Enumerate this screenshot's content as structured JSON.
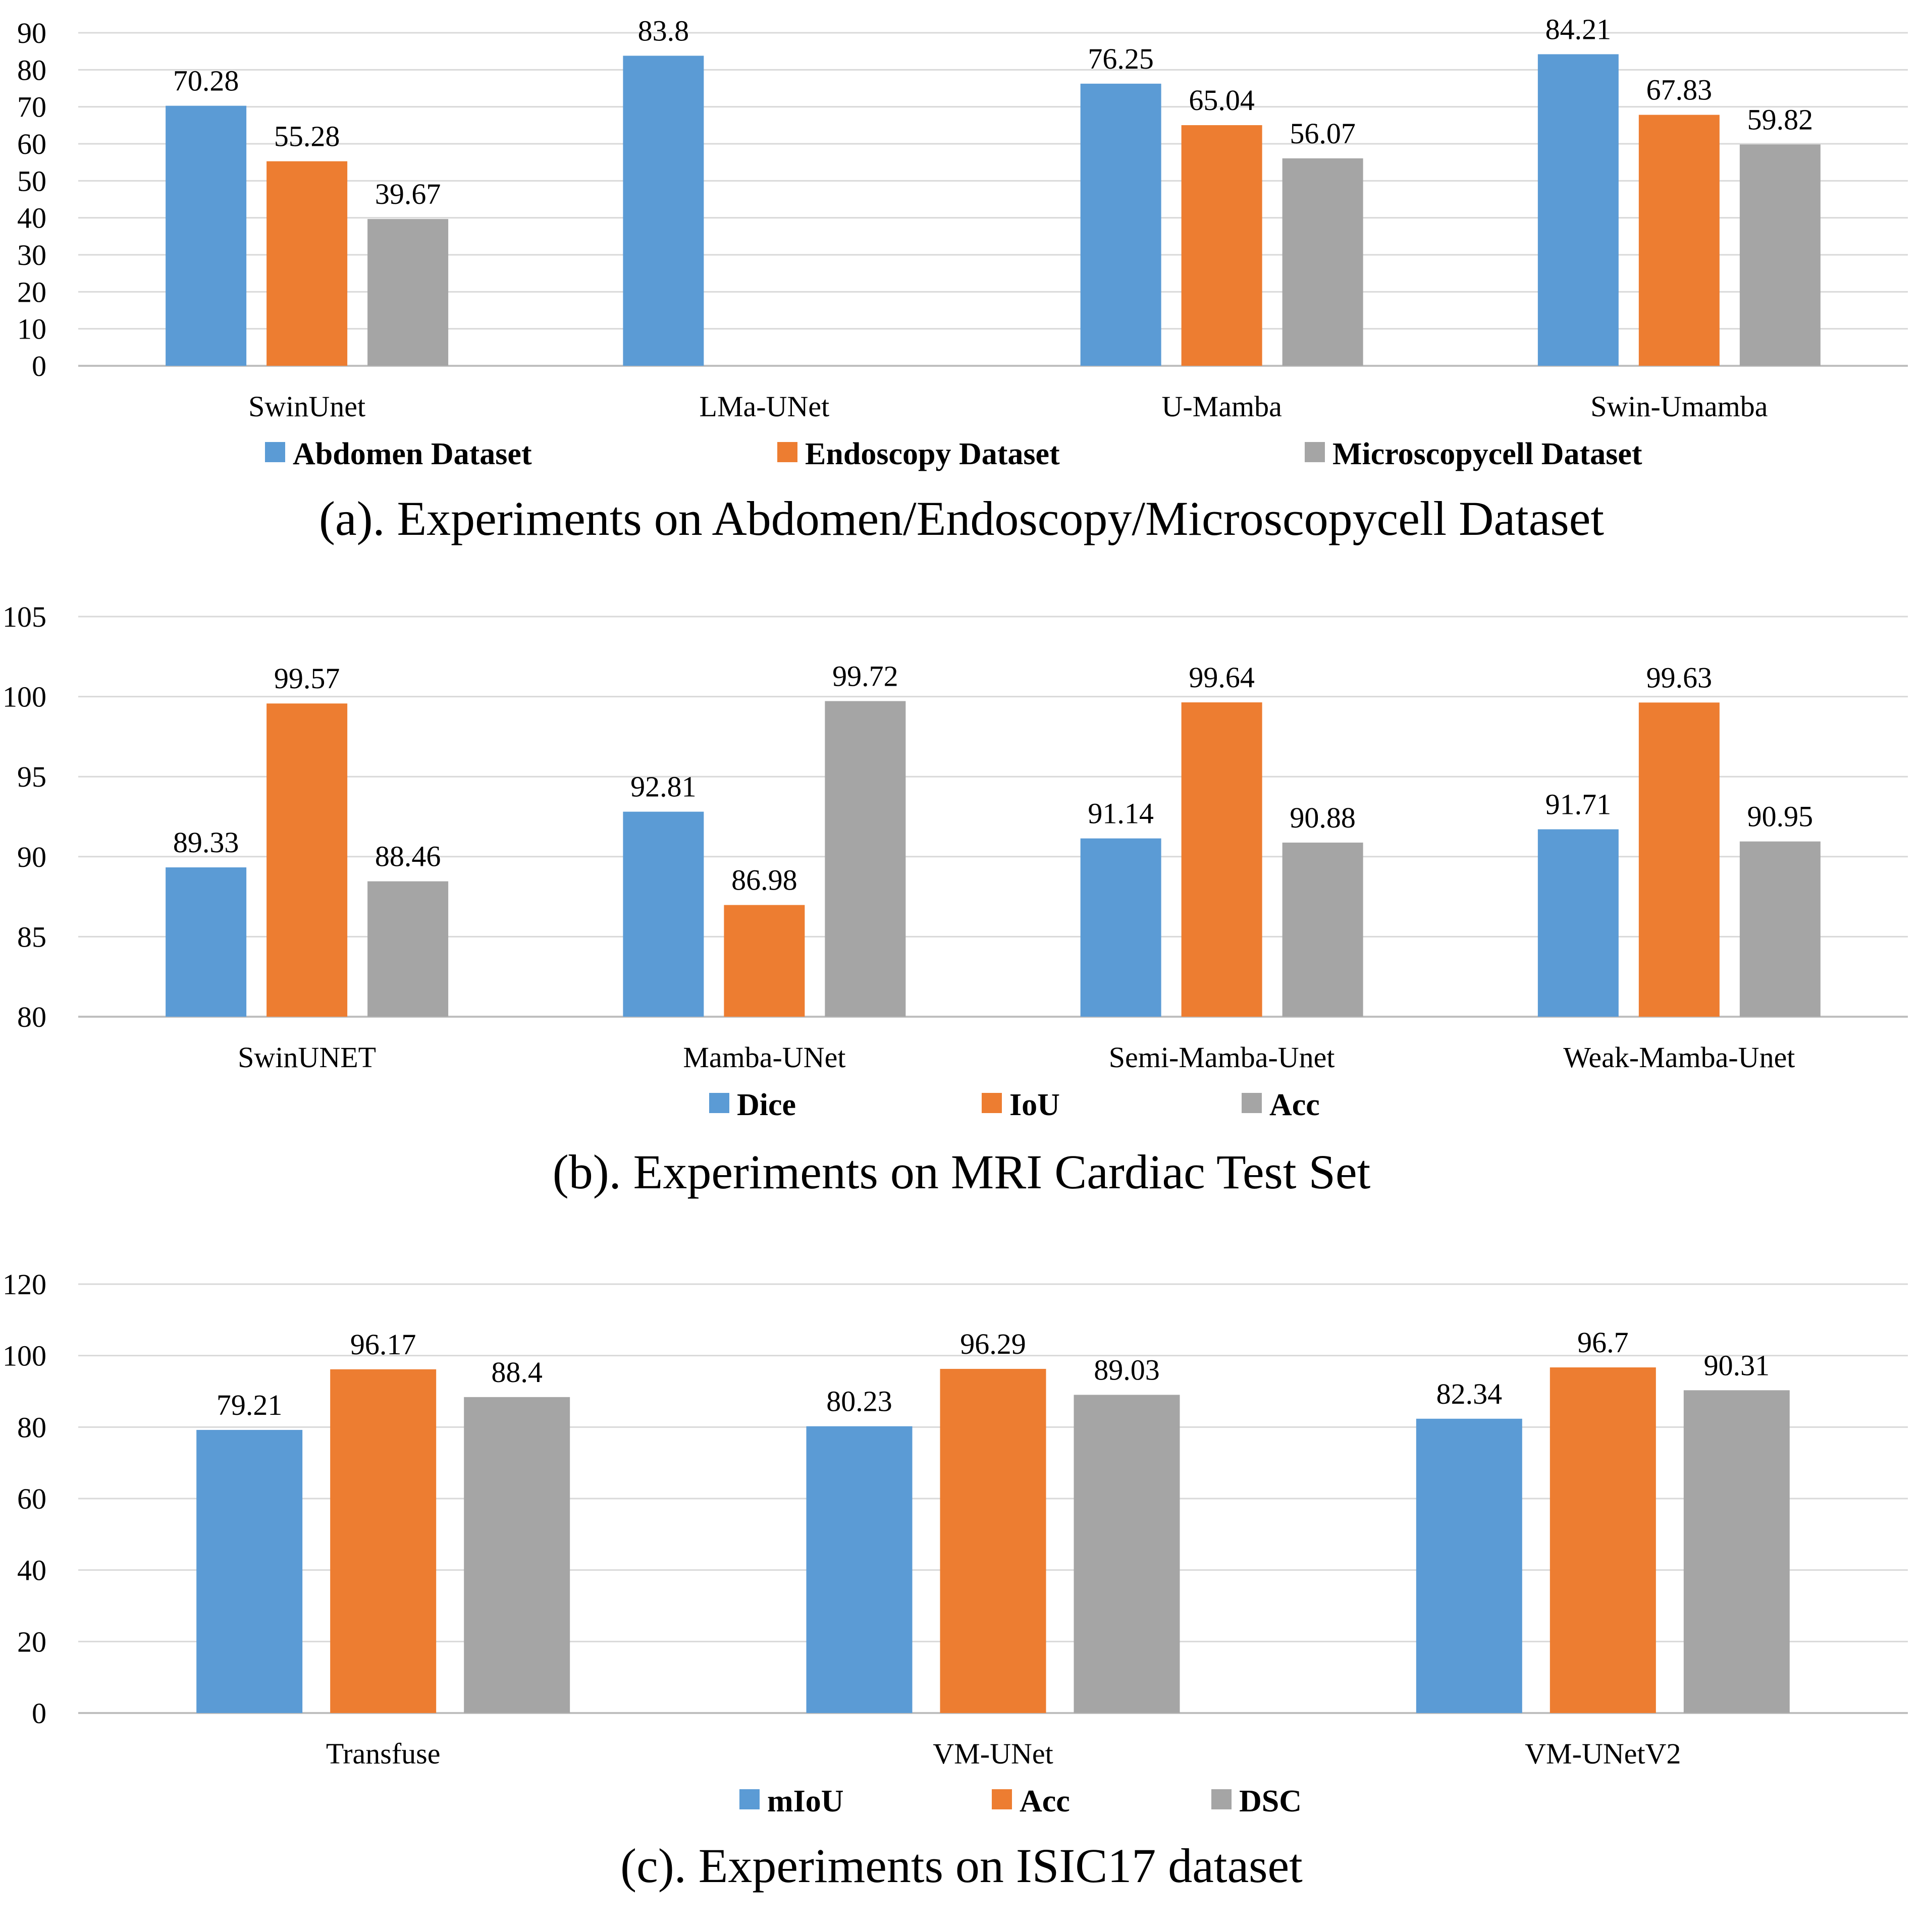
{
  "colors": {
    "blue": "#5b9bd5",
    "orange": "#ed7d31",
    "gray": "#a5a5a5"
  },
  "chart_data": [
    {
      "type": "bar",
      "title": "(a). Experiments on Abdomen/Endoscopy/Microscopycell Dataset",
      "xlabel": "",
      "ylabel": "",
      "ylim": [
        0,
        90
      ],
      "yticks": [
        0,
        10,
        20,
        30,
        40,
        50,
        60,
        70,
        80,
        90
      ],
      "grid": true,
      "legend_position": "bottom",
      "categories": [
        "SwinUnet",
        "LMa-UNet",
        "U-Mamba",
        "Swin-Umamba"
      ],
      "series": [
        {
          "name": "Abdomen Dataset",
          "color": "#5b9bd5",
          "values": [
            70.28,
            83.8,
            76.25,
            84.21
          ],
          "labels": [
            "70.28",
            "83.8",
            "76.25",
            "84.21"
          ]
        },
        {
          "name": "Endoscopy Dataset",
          "color": "#ed7d31",
          "values": [
            55.28,
            null,
            65.04,
            67.83
          ],
          "labels": [
            "55.28",
            null,
            "65.04",
            "67.83"
          ]
        },
        {
          "name": "Microscopycell Dataset",
          "color": "#a5a5a5",
          "values": [
            39.67,
            null,
            56.07,
            59.82
          ],
          "labels": [
            "39.67",
            null,
            "56.07",
            "59.82"
          ]
        }
      ]
    },
    {
      "type": "bar",
      "title": "(b). Experiments on MRI Cardiac Test Set",
      "xlabel": "",
      "ylabel": "",
      "ylim": [
        80,
        105
      ],
      "yticks": [
        80,
        85,
        90,
        95,
        100,
        105
      ],
      "grid": true,
      "legend_position": "bottom",
      "categories": [
        "SwinUNET",
        "Mamba-UNet",
        "Semi-Mamba-Unet",
        "Weak-Mamba-Unet"
      ],
      "series": [
        {
          "name": "Dice",
          "color": "#5b9bd5",
          "values": [
            89.33,
            92.81,
            91.14,
            91.71
          ],
          "labels": [
            "89.33",
            "92.81",
            "91.14",
            "91.71"
          ]
        },
        {
          "name": "IoU",
          "color": "#ed7d31",
          "values": [
            99.57,
            86.98,
            99.64,
            99.63
          ],
          "labels": [
            "99.57",
            "86.98",
            "99.64",
            "99.63"
          ]
        },
        {
          "name": "Acc",
          "color": "#a5a5a5",
          "values": [
            88.46,
            99.72,
            90.88,
            90.95
          ],
          "labels": [
            "88.46",
            "99.72",
            "90.88",
            "90.95"
          ]
        }
      ]
    },
    {
      "type": "bar",
      "title": "(c). Experiments on ISIC17 dataset",
      "xlabel": "",
      "ylabel": "",
      "ylim": [
        0,
        120
      ],
      "yticks": [
        0,
        20,
        40,
        60,
        80,
        100,
        120
      ],
      "grid": true,
      "legend_position": "bottom",
      "categories": [
        "Transfuse",
        "VM-UNet",
        "VM-UNetV2"
      ],
      "series": [
        {
          "name": "mIoU",
          "color": "#5b9bd5",
          "values": [
            79.21,
            80.23,
            82.34
          ],
          "labels": [
            "79.21",
            "80.23",
            "82.34"
          ]
        },
        {
          "name": "Acc",
          "color": "#ed7d31",
          "values": [
            96.17,
            96.29,
            96.7
          ],
          "labels": [
            "96.17",
            "96.29",
            "96.7"
          ]
        },
        {
          "name": "DSC",
          "color": "#a5a5a5",
          "values": [
            88.4,
            89.03,
            90.31
          ],
          "labels": [
            "88.4",
            "89.03",
            "90.31"
          ]
        }
      ]
    }
  ]
}
